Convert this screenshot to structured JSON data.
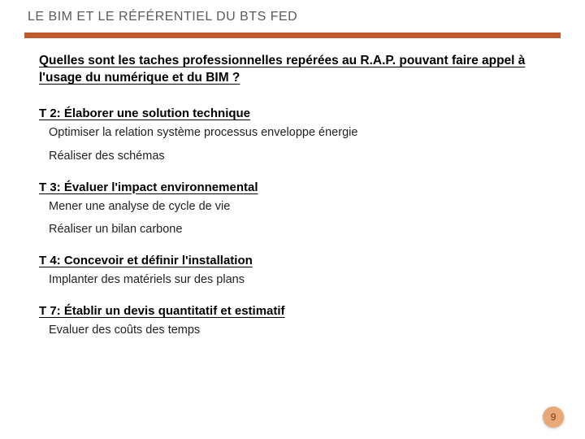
{
  "title": "LE BIM ET LE RÉFÉRENTIEL DU BTS FED",
  "accent_color": "#c05a2a",
  "badge_bg": "#e8a878",
  "badge_fg": "#7a3510",
  "question": "Quelles sont les taches professionnelles repérées au R.A.P. pouvant faire appel à l'usage du numérique et du BIM ?",
  "tasks": [
    {
      "title": "T 2: Élaborer une solution technique",
      "items": [
        "Optimiser la relation système processus enveloppe énergie",
        "Réaliser des schémas"
      ]
    },
    {
      "title": "T 3: Évaluer l'impact environnemental",
      "items": [
        "Mener une analyse de cycle de vie",
        "Réaliser un bilan carbone"
      ]
    },
    {
      "title": "T 4: Concevoir et définir l'installation",
      "items": [
        "Implanter des matériels sur des plans"
      ]
    },
    {
      "title": "T 7: Établir un devis quantitatif et estimatif",
      "items": [
        "Evaluer des coûts des temps"
      ]
    }
  ],
  "page_number": "9"
}
